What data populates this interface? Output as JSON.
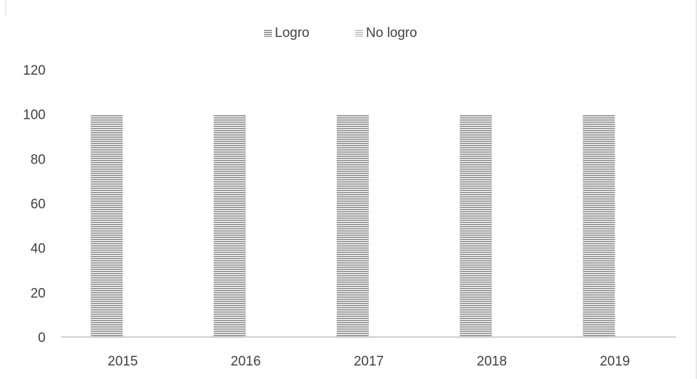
{
  "chart_data": {
    "type": "bar",
    "title": "",
    "xlabel": "",
    "ylabel": "",
    "categories": [
      "2015",
      "2016",
      "2017",
      "2018",
      "2019"
    ],
    "series": [
      {
        "name": "Logro",
        "values": [
          100,
          100,
          100,
          100,
          100
        ]
      },
      {
        "name": "No logro",
        "values": [
          0,
          0,
          0,
          0,
          0
        ]
      }
    ],
    "y_ticks": [
      "0",
      "20",
      "40",
      "60",
      "80",
      "100",
      "120"
    ],
    "ylim": [
      0,
      120
    ],
    "grid": false,
    "legend_position": "top-center",
    "colors": {
      "logro_stripe": "#8a8a8a",
      "no_logro_stripe": "#bdbdbd",
      "axis": "#bfbfbf",
      "frame": "#d0d0d0",
      "text": "#404040"
    }
  }
}
